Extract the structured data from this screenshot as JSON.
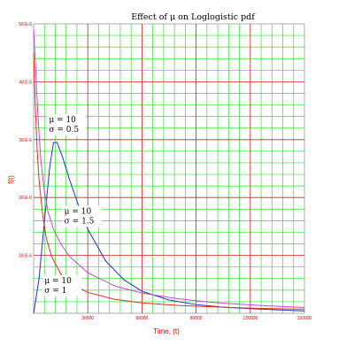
{
  "chart_data": {
    "type": "line",
    "title": "Effect of μ on Loglogistic pdf",
    "xlabel": "Time, (t)",
    "ylabel": "f(t)",
    "xlim": [
      0,
      150000
    ],
    "ylim": [
      0,
      5e-05
    ],
    "grid": true,
    "x_ticks": [
      {
        "value": 30000,
        "label": "30000"
      },
      {
        "value": 60000,
        "label": "60000"
      },
      {
        "value": 90000,
        "label": "90000"
      },
      {
        "value": 120000,
        "label": "120000"
      },
      {
        "value": 150000,
        "label": "150000"
      }
    ],
    "y_ticks": [
      {
        "value": 1e-05,
        "label": "10.E-6"
      },
      {
        "value": 2e-05,
        "label": "20.E-6"
      },
      {
        "value": 3e-05,
        "label": "30.E-6"
      },
      {
        "value": 4e-05,
        "label": "40.E-6"
      },
      {
        "value": 5e-05,
        "label": "50.E-6"
      }
    ],
    "series": [
      {
        "name": "",
        "color": "#2233cc",
        "x": [
          0,
          3000,
          6000,
          9000,
          11000,
          13000,
          16000,
          20000,
          25000,
          30000,
          40000,
          50000,
          60000,
          75000,
          90000,
          105000,
          120000,
          135000,
          150000
        ],
        "y": [
          0,
          6e-06,
          1.6e-05,
          2.55e-05,
          2.95e-05,
          2.95e-05,
          2.7e-05,
          2.3e-05,
          1.85e-05,
          1.45e-05,
          9e-06,
          5.8e-06,
          3.8e-06,
          2.3e-06,
          1.5e-06,
          1.05e-06,
          8e-07,
          6e-07,
          4e-07
        ]
      },
      {
        "name": "",
        "color": "#cc44cc",
        "x": [
          0,
          1000,
          2000,
          3000,
          4000,
          6000,
          8000,
          11000,
          15000,
          20000,
          30000,
          45000,
          60000,
          80000,
          100000,
          125000,
          150000
        ],
        "y": [
          4.9e-05,
          4.3e-05,
          3.65e-05,
          3.1e-05,
          2.65e-05,
          2.1e-05,
          1.75e-05,
          1.45e-05,
          1.2e-05,
          9.8e-06,
          7e-06,
          4.7e-06,
          3.5e-06,
          2.5e-06,
          1.85e-06,
          1.35e-06,
          1e-06
        ]
      },
      {
        "name": "",
        "color": "#e0301e",
        "x": [
          0,
          1000,
          2000,
          3000,
          5000,
          7000,
          10000,
          15000,
          20000,
          30000,
          45000,
          60000,
          80000,
          100000,
          125000,
          150000
        ],
        "y": [
          4.5e-05,
          3.5e-05,
          2.8e-05,
          2.3e-05,
          1.7e-05,
          1.3e-05,
          9.8e-06,
          6.8e-06,
          5.2e-06,
          3.6e-06,
          2.4e-06,
          1.8e-06,
          1.35e-06,
          1.1e-06,
          8.5e-07,
          7e-07
        ]
      }
    ],
    "annotations": [
      {
        "lines": [
          "μ = 10",
          "σ = 0.5"
        ],
        "x": 8500,
        "y": 3.3e-05
      },
      {
        "lines": [
          "μ = 10",
          "σ = 1.5"
        ],
        "x": 17000,
        "y": 1.72e-05
      },
      {
        "lines": [
          "μ = 10",
          "σ = 1"
        ],
        "x": 6000,
        "y": 5.2e-06
      }
    ]
  }
}
